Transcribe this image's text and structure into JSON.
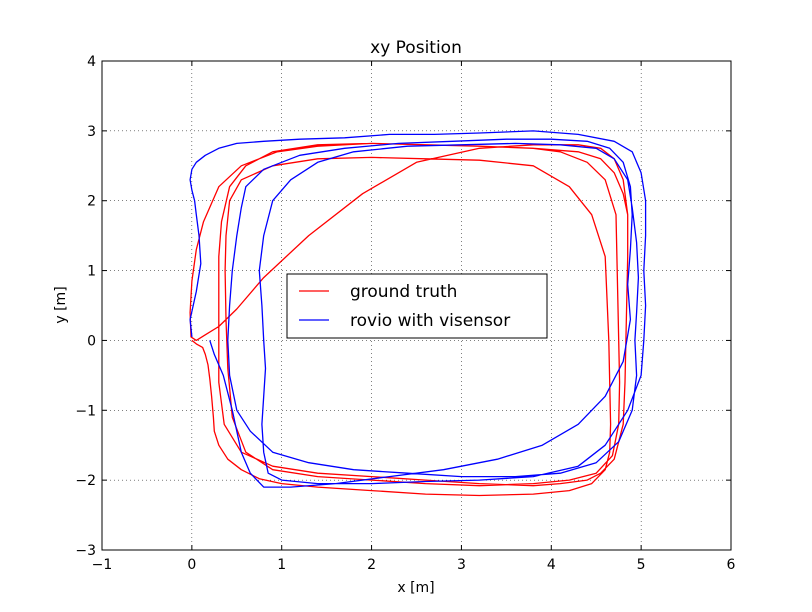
{
  "chart_data": {
    "type": "line",
    "title": "xy Position",
    "xlabel": "x [m]",
    "ylabel": "y [m]",
    "xlim": [
      -1,
      6
    ],
    "ylim": [
      -3,
      4
    ],
    "xticks": [
      -1,
      0,
      1,
      2,
      3,
      4,
      5,
      6
    ],
    "yticks": [
      -3,
      -2,
      -1,
      0,
      1,
      2,
      3,
      4
    ],
    "xtick_labels": [
      "−1",
      "0",
      "1",
      "2",
      "3",
      "4",
      "5",
      "6"
    ],
    "ytick_labels": [
      "−3",
      "−2",
      "−1",
      "0",
      "1",
      "2",
      "3",
      "4"
    ],
    "grid": true,
    "legend_position": "center-left",
    "series": [
      {
        "name": "ground truth",
        "color": "#ff0000",
        "x": [
          0.0,
          0.05,
          0.12,
          0.15,
          0.18,
          0.2,
          0.22,
          0.24,
          0.25,
          0.3,
          0.4,
          0.55,
          0.75,
          1.0,
          1.4,
          2.0,
          2.6,
          3.2,
          3.8,
          4.2,
          4.45,
          4.6,
          4.65,
          4.66,
          4.65,
          4.64,
          4.62,
          4.6,
          4.45,
          4.2,
          3.8,
          3.2,
          2.6,
          2.0,
          1.4,
          0.9,
          0.55,
          0.42,
          0.38,
          0.37,
          0.38,
          0.4,
          0.45,
          0.6,
          0.9,
          1.4,
          2.0,
          2.6,
          3.2,
          3.8,
          4.2,
          4.5,
          4.68,
          4.75,
          4.76,
          4.75,
          4.74,
          4.73,
          4.72,
          4.6,
          4.4,
          4.1,
          3.8,
          3.2,
          2.6,
          2.0,
          1.4,
          0.95,
          0.55,
          0.3,
          0.13,
          0.05,
          0.0,
          -0.02,
          -0.01,
          0.05,
          0.15,
          0.3,
          0.5,
          0.8,
          1.3,
          1.9,
          2.5,
          3.2,
          3.8,
          4.3,
          4.55,
          4.7,
          4.8,
          4.85,
          4.85,
          4.84,
          4.83,
          4.82,
          4.8,
          4.7,
          4.55,
          4.4,
          4.1,
          3.8,
          3.2,
          2.6,
          2.0,
          1.4,
          0.9,
          0.55,
          0.36,
          0.3,
          0.3,
          0.3,
          0.3,
          0.33,
          0.42,
          0.6,
          0.9,
          1.4,
          2.0,
          2.6,
          3.2,
          3.8,
          4.3,
          4.55,
          4.7,
          4.8,
          4.85
        ],
        "y": [
          0.0,
          -0.05,
          -0.1,
          -0.2,
          -0.35,
          -0.55,
          -0.8,
          -1.1,
          -1.3,
          -1.5,
          -1.7,
          -1.85,
          -1.98,
          -2.05,
          -2.1,
          -2.15,
          -2.2,
          -2.22,
          -2.2,
          -2.15,
          -2.05,
          -1.85,
          -1.6,
          -1.2,
          -0.6,
          0.0,
          0.6,
          1.2,
          1.8,
          2.2,
          2.5,
          2.58,
          2.6,
          2.62,
          2.6,
          2.5,
          2.3,
          2.0,
          1.5,
          1.0,
          0.3,
          -0.4,
          -1.1,
          -1.6,
          -1.85,
          -1.95,
          -2.0,
          -2.05,
          -2.08,
          -2.05,
          -2.0,
          -1.9,
          -1.65,
          -1.2,
          -0.6,
          0.0,
          0.6,
          1.2,
          1.8,
          2.3,
          2.55,
          2.7,
          2.75,
          2.78,
          2.8,
          2.82,
          2.78,
          2.7,
          2.5,
          2.2,
          1.7,
          1.3,
          0.85,
          0.4,
          0.05,
          0.0,
          0.08,
          0.2,
          0.45,
          0.9,
          1.5,
          2.1,
          2.55,
          2.75,
          2.8,
          2.8,
          2.75,
          2.6,
          2.3,
          1.8,
          1.2,
          0.6,
          0.0,
          -0.6,
          -1.2,
          -1.7,
          -1.9,
          -2.0,
          -2.05,
          -2.08,
          -2.05,
          -2.0,
          -1.95,
          -1.9,
          -1.8,
          -1.6,
          -1.2,
          -0.6,
          0.0,
          0.6,
          1.2,
          1.7,
          2.2,
          2.5,
          2.7,
          2.8,
          2.82,
          2.8,
          2.78,
          2.75,
          2.7,
          2.6,
          2.4,
          2.1,
          1.8
        ]
      },
      {
        "name": "rovio with visensor",
        "color": "#0000ff",
        "x": [
          0.0,
          -0.02,
          0.05,
          0.1,
          0.08,
          0.05,
          0.03,
          0.0,
          -0.02,
          0.0,
          0.05,
          0.15,
          0.3,
          0.5,
          0.8,
          1.2,
          1.7,
          2.2,
          2.7,
          3.2,
          3.8,
          4.3,
          4.7,
          4.9,
          5.0,
          5.05,
          5.05,
          5.03,
          5.05,
          5.03,
          5.0,
          4.85,
          4.6,
          4.3,
          3.8,
          3.2,
          2.6,
          2.0,
          1.4,
          1.0,
          0.85,
          0.8,
          0.78,
          0.8,
          0.82,
          0.8,
          0.78,
          0.75,
          0.8,
          0.9,
          1.1,
          1.4,
          1.8,
          2.4,
          3.0,
          3.6,
          4.1,
          4.5,
          4.7,
          4.85,
          4.9,
          4.95,
          4.97,
          4.95,
          4.93,
          4.95,
          4.9,
          4.75,
          4.5,
          4.1,
          3.6,
          3.0,
          2.4,
          1.8,
          1.3,
          0.9,
          0.65,
          0.5,
          0.42,
          0.4,
          0.42,
          0.45,
          0.5,
          0.55,
          0.6,
          0.8,
          1.2,
          1.7,
          2.3,
          2.9,
          3.5,
          4.0,
          4.4,
          4.65,
          4.8,
          4.88,
          4.9,
          4.88,
          4.85,
          4.88,
          4.8,
          4.6,
          4.3,
          3.9,
          3.4,
          2.8,
          2.2,
          1.6,
          1.1,
          0.8,
          0.65,
          0.55,
          0.45,
          0.35,
          0.25,
          0.2
        ],
        "y": [
          0.05,
          0.3,
          0.7,
          1.1,
          1.5,
          1.8,
          2.0,
          2.15,
          2.3,
          2.45,
          2.55,
          2.65,
          2.75,
          2.82,
          2.85,
          2.88,
          2.9,
          2.95,
          2.95,
          2.97,
          3.0,
          2.95,
          2.85,
          2.7,
          2.4,
          2.0,
          1.5,
          1.0,
          0.5,
          0.0,
          -0.5,
          -1.0,
          -1.5,
          -1.8,
          -1.95,
          -2.0,
          -2.02,
          -2.05,
          -2.05,
          -2.0,
          -1.9,
          -1.6,
          -1.2,
          -0.8,
          -0.4,
          0.0,
          0.5,
          1.0,
          1.5,
          2.0,
          2.3,
          2.55,
          2.7,
          2.78,
          2.8,
          2.82,
          2.8,
          2.75,
          2.6,
          2.3,
          1.9,
          1.4,
          0.9,
          0.4,
          0.0,
          -0.5,
          -1.0,
          -1.45,
          -1.75,
          -1.9,
          -1.95,
          -1.95,
          -1.9,
          -1.85,
          -1.75,
          -1.6,
          -1.3,
          -1.0,
          -0.5,
          0.0,
          0.5,
          1.0,
          1.5,
          1.9,
          2.2,
          2.45,
          2.65,
          2.75,
          2.82,
          2.85,
          2.88,
          2.88,
          2.85,
          2.75,
          2.55,
          2.2,
          1.8,
          1.3,
          0.8,
          0.3,
          -0.3,
          -0.8,
          -1.2,
          -1.5,
          -1.7,
          -1.85,
          -1.95,
          -2.05,
          -2.1,
          -2.1,
          -1.9,
          -1.6,
          -1.0,
          -0.5,
          -0.2,
          0.0
        ]
      }
    ]
  }
}
